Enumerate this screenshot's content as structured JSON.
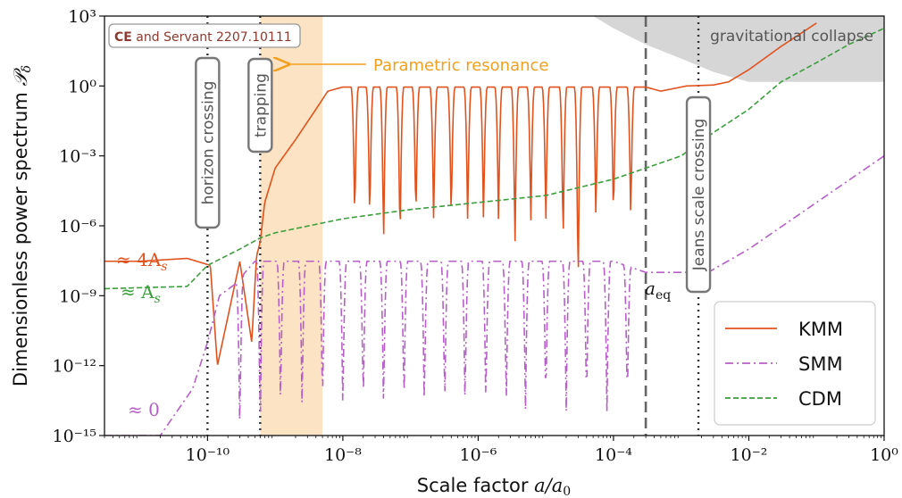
{
  "chart_data": {
    "type": "line",
    "title": "",
    "xlabel": "Scale factor a/a₀",
    "ylabel": "Dimensionless power spectrum 𝒫δ",
    "x_scale": "log",
    "y_scale": "log",
    "xlim": [
      3e-12,
      1
    ],
    "ylim": [
      1e-15,
      1000.0
    ],
    "x_ticks": [
      {
        "value": 1e-10,
        "label": "10⁻¹⁰"
      },
      {
        "value": 1e-08,
        "label": "10⁻⁸"
      },
      {
        "value": 1e-06,
        "label": "10⁻⁶"
      },
      {
        "value": 0.0001,
        "label": "10⁻⁴"
      },
      {
        "value": 0.01,
        "label": "10⁻²"
      },
      {
        "value": 1,
        "label": "10⁰"
      }
    ],
    "y_ticks": [
      {
        "value": 1000.0,
        "label": "10³"
      },
      {
        "value": 1,
        "label": "10⁰"
      },
      {
        "value": 0.001,
        "label": "10⁻³"
      },
      {
        "value": 1e-06,
        "label": "10⁻⁶"
      },
      {
        "value": 1e-09,
        "label": "10⁻⁹"
      },
      {
        "value": 1e-12,
        "label": "10⁻¹²"
      },
      {
        "value": 1e-15,
        "label": "10⁻¹⁵"
      }
    ],
    "grid": false,
    "legend_position": "bottom-right",
    "series": [
      {
        "name": "KMM",
        "color": "#e0531f",
        "dash": "solid",
        "x": [
          3e-12,
          1e-11,
          5e-11,
          1.1e-10,
          1.4e-10,
          3e-10,
          4.5e-10,
          5.3e-10,
          6e-10,
          7e-10,
          1e-09,
          2e-09,
          4e-09,
          6e-09,
          1e-08,
          1e-06,
          0.0001,
          0.0003,
          0.0005,
          0.0012,
          0.003,
          0.005,
          0.01,
          0.03,
          0.1
        ],
        "y": [
          3e-08,
          3e-08,
          4e-08,
          2e-08,
          1e-12,
          3e-08,
          1e-11,
          5e-08,
          2e-07,
          1e-05,
          0.0003,
          0.005,
          0.1,
          0.6,
          0.9,
          0.9,
          0.9,
          0.9,
          0.6,
          1.0,
          1.1,
          1.5,
          5,
          50,
          500
        ],
        "envelope": true,
        "dips_x": [
          1.5e-08,
          2.5e-08,
          4e-08,
          7e-08,
          1.2e-07,
          2.2e-07,
          4e-07,
          7e-07,
          1.2e-06,
          2e-06,
          3.5e-06,
          6e-06,
          1e-05,
          1.8e-05,
          3e-05,
          5.5e-05,
          0.0001,
          0.00018
        ],
        "dips_y": [
          1e-06,
          1e-06,
          1e-07,
          1e-07,
          1e-06,
          1e-06,
          1e-06,
          1e-06,
          1e-06,
          1e-06,
          1e-07,
          1e-06,
          1e-06,
          1e-07,
          1e-09,
          1e-06,
          1e-06,
          1e-06
        ]
      },
      {
        "name": "SMM",
        "color": "#b65fc8",
        "dash": "dashdot",
        "x": [
          3e-12,
          2e-11,
          6e-11,
          1e-10,
          1.5e-10,
          2.5e-10,
          5e-10,
          1e-09,
          1e-08,
          1e-06,
          0.0001,
          0.0003,
          0.001,
          0.0025,
          0.01,
          0.1,
          1
        ],
        "y": [
          1e-15,
          1e-15,
          1e-13,
          1e-11,
          1e-09,
          3e-09,
          3e-08,
          3e-08,
          3e-08,
          3e-08,
          3e-08,
          1e-08,
          1e-08,
          1e-08,
          1e-07,
          1e-05,
          0.001
        ],
        "envelope": true,
        "dips_x": [
          3e-10,
          6e-10,
          1.2e-09,
          2.5e-09,
          5e-09,
          1e-08,
          2e-08,
          4e-08,
          8e-08,
          1.6e-07,
          3.2e-07,
          6.4e-07,
          1.3e-06,
          2.6e-06,
          5e-06,
          1e-05,
          2e-05,
          4e-05,
          8e-05,
          0.00016
        ],
        "dips_y": [
          1e-15,
          1e-15,
          1e-14,
          1e-14,
          1e-14,
          1e-14,
          1e-14,
          1e-14,
          1e-14,
          1e-14,
          1e-14,
          1e-14,
          1e-14,
          1e-14,
          1e-14,
          1e-14,
          1e-14,
          1e-14,
          1e-14,
          1e-14
        ]
      },
      {
        "name": "CDM",
        "color": "#3c9e3c",
        "dash": "dashed",
        "x": [
          3e-12,
          5e-11,
          1e-10,
          3e-10,
          6e-10,
          1e-09,
          1e-08,
          1e-07,
          1e-06,
          1e-05,
          0.0001,
          0.001,
          0.003,
          0.01,
          0.03,
          0.1,
          0.3,
          1
        ],
        "y": [
          2e-09,
          2.5e-09,
          2e-08,
          1e-07,
          3e-07,
          5e-07,
          2e-06,
          5e-06,
          1e-05,
          2e-05,
          0.0001,
          0.001,
          0.01,
          0.1,
          1.5,
          10,
          60,
          300
        ]
      }
    ],
    "vlines": [
      {
        "x": 1e-10,
        "style": "dotted",
        "color": "#333333",
        "label": "horizon crossing"
      },
      {
        "x": 6e-10,
        "style": "dotted",
        "color": "#333333",
        "label": "trapping"
      },
      {
        "x": 0.0003,
        "style": "dashed",
        "color": "#666666",
        "label": ""
      },
      {
        "x": 0.0018,
        "style": "dotted",
        "color": "#333333",
        "label": "Jeans scale crossing"
      }
    ],
    "shaded_band": {
      "x_range": [
        6e-10,
        5e-09
      ],
      "color": "#fbe3c3"
    },
    "gray_region": {
      "label": "gravitational collapse",
      "color": "#d6d6d6"
    },
    "annotations": [
      {
        "text": "Parametric resonance",
        "color": "#f0a020"
      },
      {
        "text": "≈ 4A",
        "sub": "s",
        "color": "#e0531f"
      },
      {
        "text": "≈ A",
        "sub": "s",
        "color": "#3c9e3c"
      },
      {
        "text": "≈ 0",
        "color": "#b65fc8"
      },
      {
        "text": "a",
        "sub": "eq",
        "color": "#111111"
      }
    ],
    "citation": {
      "bold": "CE",
      "rest": " and Servant 2207.10111",
      "color": "#8b3a2f"
    }
  }
}
